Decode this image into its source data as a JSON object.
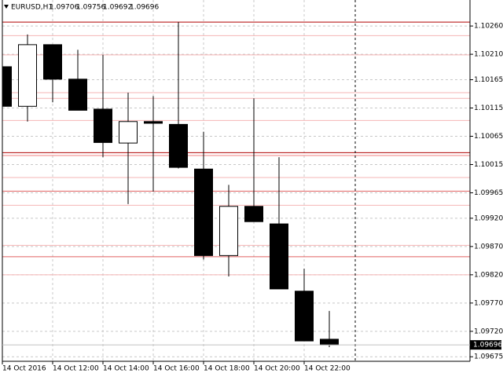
{
  "chart_data": {
    "type": "candlestick",
    "title": "EURUSD,H1",
    "categories": [
      "14 Oct 2016",
      null,
      "14 Oct 12:00",
      null,
      "14 Oct 14:00",
      null,
      "14 Oct 16:00",
      null,
      "14 Oct 18:00",
      null,
      "14 Oct 20:00",
      null,
      "14 Oct 22:00",
      null
    ],
    "open": [
      1.10188,
      1.10118,
      1.10227,
      1.10166,
      1.10113,
      1.10053,
      1.10091,
      1.10086,
      1.10007,
      1.09854,
      1.09941,
      1.0991,
      1.09791,
      1.09706
    ],
    "high": [
      1.10257,
      1.10245,
      1.10227,
      1.10218,
      1.10209,
      1.10142,
      1.10136,
      1.10267,
      1.10073,
      1.09979,
      1.10132,
      1.10028,
      1.09831,
      1.09756
    ],
    "low": [
      1.10035,
      1.10091,
      1.10125,
      1.10111,
      1.10028,
      1.09945,
      1.09967,
      1.10008,
      1.09847,
      1.09817,
      1.09914,
      1.09795,
      1.09703,
      1.09692
    ],
    "close": [
      1.10118,
      1.10227,
      1.10166,
      1.10111,
      1.10054,
      1.10091,
      1.10088,
      1.1001,
      1.09854,
      1.09941,
      1.09914,
      1.09795,
      1.09703,
      1.09696
    ],
    "up_color": "#ffffff",
    "down_color": "#000000",
    "ylim": [
      1.09667,
      1.10306
    ],
    "yticks": [
      {
        "value": 1.1026,
        "label": "1.10260"
      },
      {
        "value": 1.1021,
        "label": "1.10210"
      },
      {
        "value": 1.10165,
        "label": "1.10165"
      },
      {
        "value": 1.10115,
        "label": "1.10115"
      },
      {
        "value": 1.10065,
        "label": "1.10065"
      },
      {
        "value": 1.10015,
        "label": "1.10015"
      },
      1.09965,
      {
        "value": 1.0992,
        "label": "1.09920"
      },
      {
        "value": 1.0987,
        "label": "1.09870"
      },
      {
        "value": 1.0982,
        "label": "1.09820"
      },
      {
        "value": 1.0977,
        "label": "1.09770"
      },
      {
        "value": 1.0972,
        "label": "1.09720"
      },
      1.09675
    ],
    "grid": true,
    "levels": [
      1.10267,
      1.10243,
      1.10209,
      1.10142,
      1.10132,
      1.10093,
      1.10036,
      1.10031,
      1.09992,
      1.09968,
      1.09943,
      1.09872,
      1.09852,
      1.0982
    ],
    "level_colors": [
      "#b00000",
      "#f4b4b4",
      "#f4b4b4",
      "#f4b4b4",
      "#f4b4b4",
      "#f4b4b4",
      "#b00000",
      "#f08080",
      "#f4b4b4",
      "#e06060",
      "#f4b4b4",
      "#f4b4b4",
      "#e06060",
      "#f4b4b4"
    ]
  }
}
